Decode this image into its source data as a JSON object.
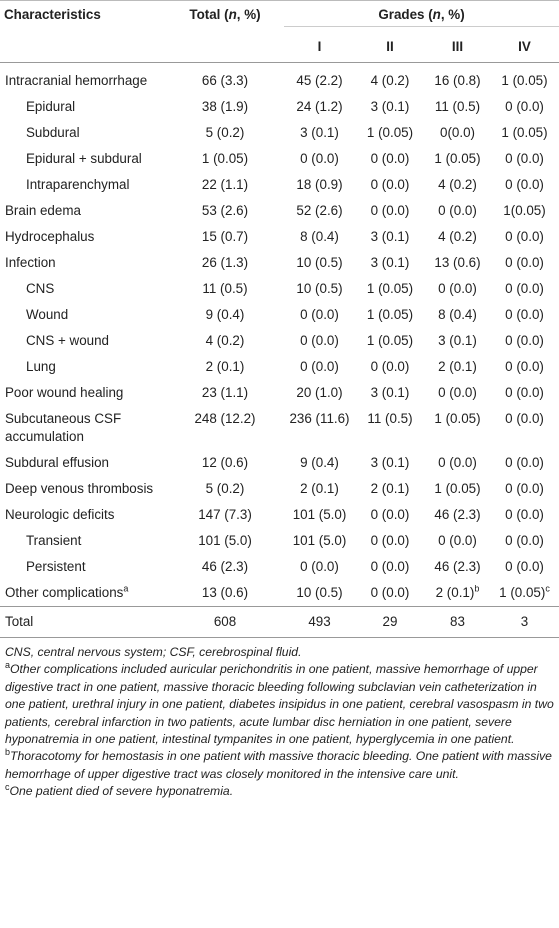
{
  "header": {
    "characteristics": "Characteristics",
    "total_pre": "Total (",
    "total_n": "n",
    "total_post": ", %)",
    "grades_pre": "Grades (",
    "grades_n": "n",
    "grades_post": ", %)",
    "grade_labels": [
      "I",
      "II",
      "III",
      "IV"
    ]
  },
  "rows": [
    {
      "label": "Intracranial hemorrhage",
      "total": "66 (3.3)",
      "g1": "45 (2.2)",
      "g2": "4 (0.2)",
      "g3": "16 (0.8)",
      "g4": "1 (0.05)"
    },
    {
      "label": "Epidural",
      "total": "38 (1.9)",
      "g1": "24 (1.2)",
      "g2": "3 (0.1)",
      "g3": "11 (0.5)",
      "g4": "0 (0.0)"
    },
    {
      "label": "Subdural",
      "total": "5 (0.2)",
      "g1": "3 (0.1)",
      "g2": "1 (0.05)",
      "g3": "0(0.0)",
      "g4": "1 (0.05)"
    },
    {
      "label": "Epidural + subdural",
      "total": "1 (0.05)",
      "g1": "0 (0.0)",
      "g2": "0 (0.0)",
      "g3": "1 (0.05)",
      "g4": "0 (0.0)"
    },
    {
      "label": "Intraparenchymal",
      "total": "22 (1.1)",
      "g1": "18 (0.9)",
      "g2": "0 (0.0)",
      "g3": "4 (0.2)",
      "g4": "0 (0.0)"
    },
    {
      "label": "Brain edema",
      "total": "53 (2.6)",
      "g1": "52 (2.6)",
      "g2": "0 (0.0)",
      "g3": "0 (0.0)",
      "g4": "1(0.05)"
    },
    {
      "label": "Hydrocephalus",
      "total": "15 (0.7)",
      "g1": "8 (0.4)",
      "g2": "3 (0.1)",
      "g3": "4 (0.2)",
      "g4": "0 (0.0)"
    },
    {
      "label": "Infection",
      "total": "26 (1.3)",
      "g1": "10 (0.5)",
      "g2": "3 (0.1)",
      "g3": "13 (0.6)",
      "g4": "0 (0.0)"
    },
    {
      "label": "CNS",
      "total": "11 (0.5)",
      "g1": "10 (0.5)",
      "g2": "1 (0.05)",
      "g3": "0 (0.0)",
      "g4": "0 (0.0)"
    },
    {
      "label": "Wound",
      "total": "9 (0.4)",
      "g1": "0 (0.0)",
      "g2": "1 (0.05)",
      "g3": "8 (0.4)",
      "g4": "0 (0.0)"
    },
    {
      "label": "CNS + wound",
      "total": "4 (0.2)",
      "g1": "0 (0.0)",
      "g2": "1 (0.05)",
      "g3": "3 (0.1)",
      "g4": "0 (0.0)"
    },
    {
      "label": "Lung",
      "total": "2 (0.1)",
      "g1": "0 (0.0)",
      "g2": "0 (0.0)",
      "g3": "2 (0.1)",
      "g4": "0 (0.0)"
    },
    {
      "label": "Poor wound healing",
      "total": "23 (1.1)",
      "g1": "20 (1.0)",
      "g2": "3 (0.1)",
      "g3": "0 (0.0)",
      "g4": "0 (0.0)"
    },
    {
      "label": "Subcutaneous CSF accumulation",
      "total": "248 (12.2)",
      "g1": "236 (11.6)",
      "g2": "11 (0.5)",
      "g3": "1 (0.05)",
      "g4": "0 (0.0)"
    },
    {
      "label": "Subdural effusion",
      "total": "12 (0.6)",
      "g1": "9 (0.4)",
      "g2": "3 (0.1)",
      "g3": "0 (0.0)",
      "g4": "0 (0.0)"
    },
    {
      "label": "Deep venous thrombosis",
      "total": "5 (0.2)",
      "g1": "2 (0.1)",
      "g2": "2 (0.1)",
      "g3": "1 (0.05)",
      "g4": "0 (0.0)"
    },
    {
      "label": "Neurologic deficits",
      "total": "147 (7.3)",
      "g1": "101 (5.0)",
      "g2": "0 (0.0)",
      "g3": "46 (2.3)",
      "g4": "0 (0.0)"
    },
    {
      "label": "Transient",
      "total": "101 (5.0)",
      "g1": "101 (5.0)",
      "g2": "0 (0.0)",
      "g3": "0 (0.0)",
      "g4": "0 (0.0)"
    },
    {
      "label": "Persistent",
      "total": "46 (2.3)",
      "g1": "0 (0.0)",
      "g2": "0 (0.0)",
      "g3": "46 (2.3)",
      "g4": "0 (0.0)"
    },
    {
      "label": "Other complications",
      "label_sup": "a",
      "total": "13 (0.6)",
      "g1": "10 (0.5)",
      "g2": "0 (0.0)",
      "g3": "2 (0.1)",
      "g3_sup": "b",
      "g4": "1 (0.05)",
      "g4_sup": "c"
    },
    {
      "label": "Total",
      "total": "608",
      "g1": "493",
      "g2": "29",
      "g3": "83",
      "g4": "3"
    }
  ],
  "notes": {
    "abbrev": "CNS, central nervous system; CSF, cerebrospinal fluid.",
    "a_mark": "a",
    "a_text": "Other complications included auricular perichondritis in one patient, massive hemorrhage of upper digestive tract in one patient, massive thoracic bleeding following subclavian vein catheterization in one patient, urethral injury in one patient, diabetes insipidus in one patient, cerebral vasospasm in two patients, cerebral infarction in two patients, acute lumbar disc herniation in one patient, severe hyponatremia in one patient, intestinal tympanites in one patient, hyperglycemia in one patient.",
    "b_mark": "b",
    "b_text": "Thoracotomy for hemostasis in one patient with massive thoracic bleeding. One patient with massive hemorrhage of upper digestive tract was closely monitored in the intensive care unit.",
    "c_mark": "c",
    "c_text": "One patient died of severe hyponatremia."
  }
}
